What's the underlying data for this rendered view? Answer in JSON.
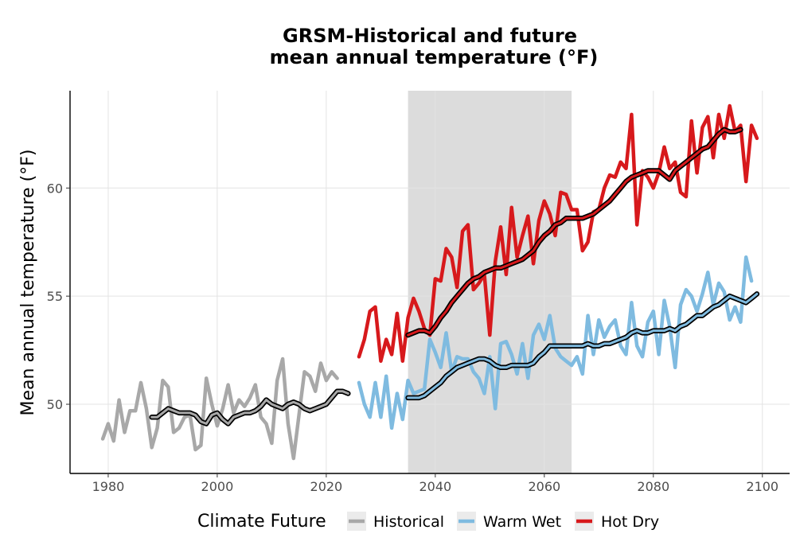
{
  "chart_data": {
    "type": "line",
    "title_lines": [
      "GRSM-Historical and future",
      "mean annual temperature (°F)"
    ],
    "xlabel": "",
    "ylabel": "Mean annual temperature (°F)",
    "xlim": [
      1973,
      2105
    ],
    "ylim": [
      46.8,
      64.5
    ],
    "x_ticks": [
      1980,
      2000,
      2020,
      2040,
      2060,
      2080,
      2100
    ],
    "y_ticks": [
      50,
      55,
      60
    ],
    "grid": true,
    "shaded_period": [
      2035,
      2065
    ],
    "legend": {
      "title": "Climate Future",
      "placement": "bottom",
      "entries": [
        "Historical",
        "Warm Wet",
        "Hot Dry"
      ]
    },
    "series": [
      {
        "name": "Historical",
        "color": "#a8a8a8",
        "x_start": 1979,
        "values": [
          48.4,
          49.1,
          48.3,
          50.2,
          48.7,
          49.7,
          49.7,
          51.0,
          49.8,
          48.0,
          48.9,
          51.1,
          50.8,
          48.7,
          48.9,
          49.4,
          49.5,
          47.9,
          48.1,
          51.2,
          50.0,
          49.0,
          49.8,
          50.9,
          49.6,
          50.2,
          49.9,
          50.3,
          50.9,
          49.4,
          49.1,
          48.2,
          51.1,
          52.1,
          49.1,
          47.5,
          49.5,
          51.5,
          51.3,
          50.6,
          51.9,
          51.1,
          51.5,
          51.2
        ]
      },
      {
        "name": "Warm Wet",
        "color": "#7fbbe0",
        "x_start": 2026,
        "values": [
          51.0,
          50.0,
          49.4,
          51.0,
          49.4,
          51.3,
          48.9,
          50.5,
          49.3,
          51.1,
          50.5,
          50.6,
          50.7,
          53.0,
          52.4,
          51.7,
          53.3,
          51.5,
          52.2,
          52.1,
          52.1,
          51.5,
          51.2,
          50.5,
          52.2,
          49.8,
          52.8,
          52.9,
          52.3,
          51.4,
          52.8,
          51.2,
          53.2,
          53.7,
          53.0,
          54.1,
          52.6,
          52.2,
          52.0,
          51.8,
          52.2,
          51.4,
          54.1,
          52.3,
          53.9,
          53.1,
          53.6,
          53.9,
          52.7,
          52.3,
          54.7,
          52.7,
          52.2,
          53.8,
          54.3,
          52.3,
          54.8,
          53.6,
          51.7,
          54.6,
          55.3,
          55.0,
          54.3,
          55.1,
          56.1,
          54.6,
          55.6,
          55.2,
          53.9,
          54.5,
          53.8,
          56.8,
          55.7
        ]
      },
      {
        "name": "Hot Dry",
        "color": "#d7191c",
        "x_start": 2026,
        "values": [
          52.2,
          53.0,
          54.3,
          54.5,
          52.0,
          53.0,
          52.3,
          54.2,
          52.0,
          54.0,
          54.9,
          54.3,
          53.5,
          53.2,
          55.8,
          55.7,
          57.2,
          56.8,
          55.4,
          58.0,
          58.3,
          55.3,
          55.6,
          56.0,
          53.2,
          56.6,
          58.2,
          56.0,
          59.1,
          56.8,
          57.8,
          58.7,
          56.5,
          58.5,
          59.4,
          58.8,
          57.8,
          59.8,
          59.7,
          59.0,
          59.0,
          57.1,
          57.5,
          58.9,
          59.0,
          60.0,
          60.6,
          60.5,
          61.2,
          60.9,
          63.4,
          58.3,
          60.8,
          60.5,
          60.0,
          60.7,
          61.9,
          60.9,
          61.2,
          59.8,
          59.6,
          63.1,
          60.7,
          62.8,
          63.3,
          61.4,
          63.4,
          62.3,
          63.8,
          62.6,
          62.9,
          60.3,
          62.9,
          62.3
        ]
      },
      {
        "name": "Historical smoothed",
        "color": "#000000",
        "x_start": 1988,
        "values": [
          49.4,
          49.4,
          49.6,
          49.8,
          49.7,
          49.6,
          49.6,
          49.6,
          49.5,
          49.2,
          49.1,
          49.5,
          49.6,
          49.3,
          49.1,
          49.4,
          49.5,
          49.6,
          49.6,
          49.7,
          49.9,
          50.2,
          50.0,
          49.9,
          49.8,
          50.0,
          50.1,
          50.0,
          49.8,
          49.7,
          49.8,
          49.9,
          50.0,
          50.3,
          50.6,
          50.6,
          50.5
        ]
      },
      {
        "name": "Warm Wet smoothed",
        "color": "#000000",
        "x_start": 2035,
        "values": [
          50.3,
          50.3,
          50.3,
          50.4,
          50.6,
          50.8,
          51.0,
          51.3,
          51.5,
          51.7,
          51.8,
          51.9,
          52.0,
          52.1,
          52.1,
          52.0,
          51.8,
          51.7,
          51.7,
          51.8,
          51.8,
          51.8,
          51.8,
          51.9,
          52.2,
          52.4,
          52.7,
          52.7,
          52.7,
          52.7,
          52.7,
          52.7,
          52.7,
          52.8,
          52.7,
          52.7,
          52.8,
          52.8,
          52.9,
          53.0,
          53.1,
          53.3,
          53.4,
          53.3,
          53.3,
          53.4,
          53.4,
          53.4,
          53.5,
          53.4,
          53.6,
          53.7,
          53.9,
          54.1,
          54.1,
          54.3,
          54.5,
          54.6,
          54.8,
          55.0,
          54.9,
          54.8,
          54.7,
          54.9,
          55.1
        ]
      },
      {
        "name": "Hot Dry smoothed",
        "color": "#000000",
        "x_start": 2035,
        "values": [
          53.2,
          53.3,
          53.4,
          53.4,
          53.3,
          53.6,
          54.0,
          54.3,
          54.7,
          55.0,
          55.3,
          55.6,
          55.8,
          55.9,
          56.1,
          56.2,
          56.3,
          56.3,
          56.4,
          56.5,
          56.6,
          56.7,
          56.9,
          57.1,
          57.5,
          57.8,
          58.0,
          58.3,
          58.4,
          58.6,
          58.6,
          58.6,
          58.6,
          58.7,
          58.8,
          59.0,
          59.2,
          59.4,
          59.7,
          60.0,
          60.3,
          60.5,
          60.6,
          60.7,
          60.8,
          60.8,
          60.8,
          60.6,
          60.4,
          60.8,
          61.0,
          61.2,
          61.4,
          61.6,
          61.8,
          61.9,
          62.2,
          62.5,
          62.7,
          62.6,
          62.6,
          62.7
        ]
      }
    ]
  }
}
